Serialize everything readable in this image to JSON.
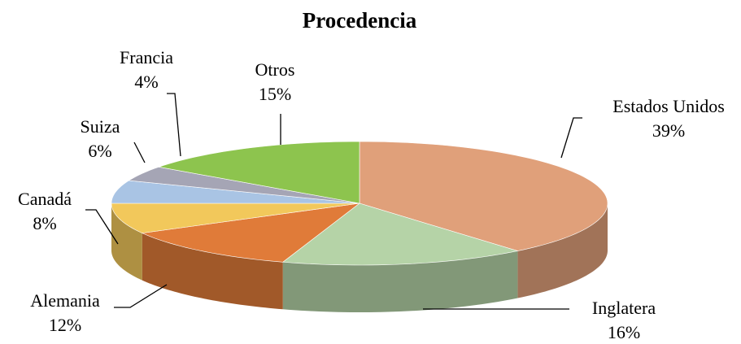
{
  "chart_data": {
    "type": "pie",
    "title": "Procedencia",
    "categories": [
      "Estados Unidos",
      "Inglatera",
      "Alemania",
      "Canadá",
      "Suiza",
      "Francia",
      "Otros"
    ],
    "values": [
      39,
      16,
      12,
      8,
      6,
      4,
      15
    ],
    "value_labels": [
      "39%",
      "16%",
      "12%",
      "8%",
      "6%",
      "4%",
      "15%"
    ],
    "colors": [
      "#e0a07a",
      "#b5d3a7",
      "#e07b39",
      "#f2c85b",
      "#a9c4e4",
      "#a5a5b5",
      "#8dc44e"
    ]
  }
}
